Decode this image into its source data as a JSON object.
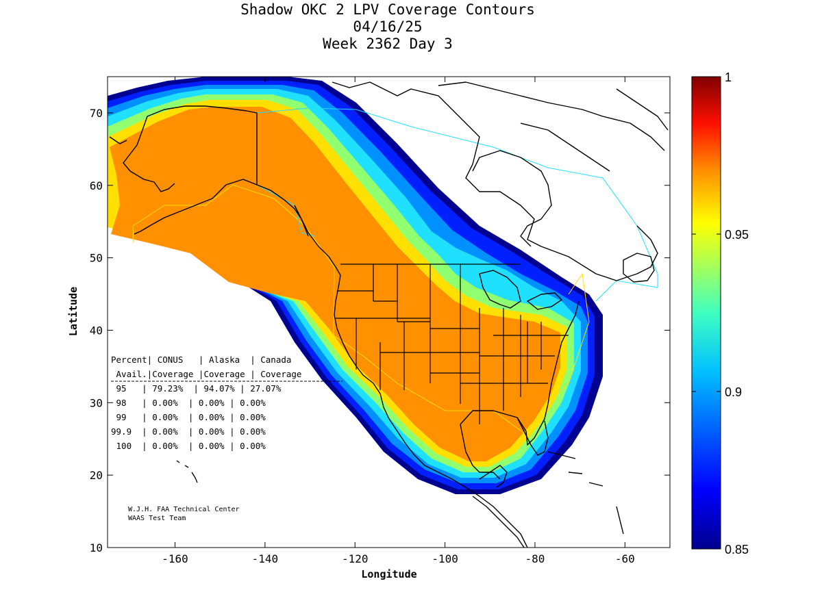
{
  "title": {
    "line1": "Shadow OKC 2 LPV Coverage Contours",
    "line2": "04/16/25",
    "line3": "Week 2362 Day 3"
  },
  "axes": {
    "xlabel": "Longitude",
    "ylabel": "Latitude",
    "lon_range": [
      -175,
      -50
    ],
    "lat_range": [
      10,
      75
    ],
    "x_ticks": [
      -160,
      -140,
      -120,
      -100,
      -80,
      -60
    ],
    "y_ticks": [
      10,
      20,
      30,
      40,
      50,
      60,
      70
    ]
  },
  "colorbar": {
    "min": 0.85,
    "max": 1,
    "ticks": [
      {
        "value": 1,
        "label": "1"
      },
      {
        "value": 0.95,
        "label": "0.95"
      },
      {
        "value": 0.9,
        "label": "0.9"
      },
      {
        "value": 0.85,
        "label": "0.85"
      }
    ],
    "colors": [
      "#00008f",
      "#0000ff",
      "#0080ff",
      "#00ffff",
      "#80ff80",
      "#ffff00",
      "#ff8000",
      "#ff0000",
      "#800000"
    ]
  },
  "coverage_table": {
    "header1": "Percent| CONUS   | Alaska  | Canada",
    "header2": " Avail.|Coverage |Coverage | Coverage",
    "rows": [
      " 95   | 79.23%  | 94.07% | 27.07%",
      " 98   | 0.00%  | 0.00% | 0.00%",
      " 99   | 0.00%  | 0.00% | 0.00%",
      "99.9  | 0.00%  | 0.00% | 0.00%",
      " 100  | 0.00%  | 0.00% | 0.00%"
    ]
  },
  "credits": {
    "line1": "W.J.H. FAA Technical Center",
    "line2": "WAAS Test Team"
  },
  "chart_data": {
    "type": "heatmap",
    "title": "Shadow OKC 2 LPV Coverage Contours",
    "xlabel": "Longitude",
    "ylabel": "Latitude",
    "xlim": [
      -175,
      -50
    ],
    "ylim": [
      10,
      75
    ],
    "colorbar_range": [
      0.85,
      1
    ],
    "table": {
      "columns": [
        "Percent Avail.",
        "CONUS Coverage",
        "Alaska Coverage",
        "Canada Coverage"
      ],
      "rows": [
        [
          "95",
          "79.23%",
          "94.07%",
          "27.07%"
        ],
        [
          "98",
          "0.00%",
          "0.00%",
          "0.00%"
        ],
        [
          "99",
          "0.00%",
          "0.00%",
          "0.00%"
        ],
        [
          "99.9",
          "0.00%",
          "0.00%",
          "0.00%"
        ],
        [
          "100",
          "0.00%",
          "0.00%",
          "0.00%"
        ]
      ]
    }
  }
}
